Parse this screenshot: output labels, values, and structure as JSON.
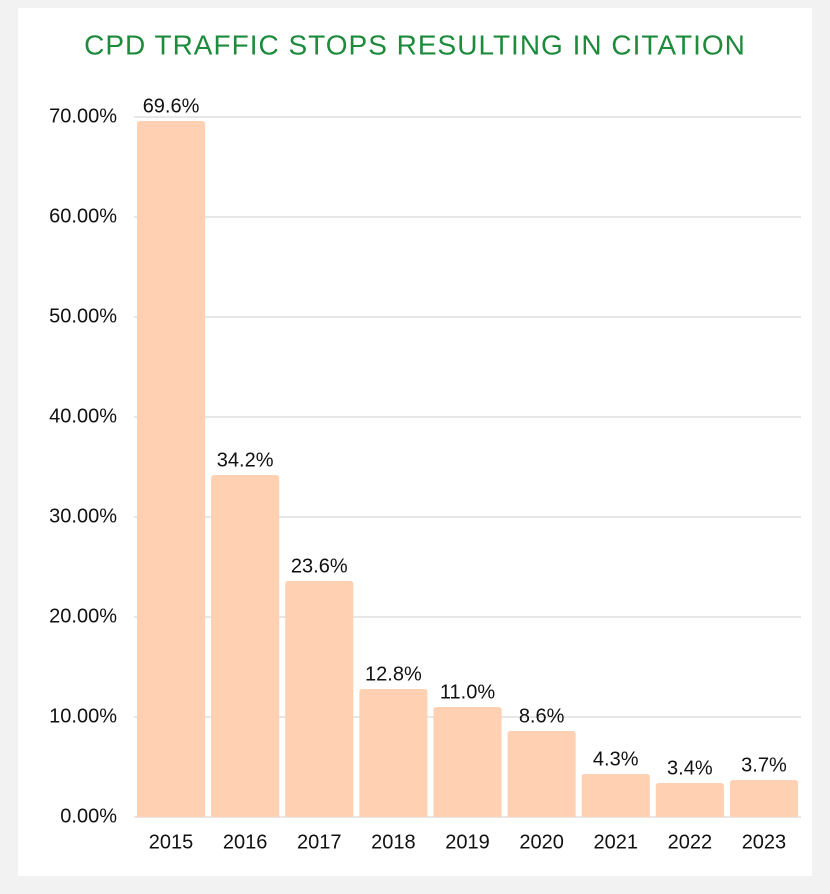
{
  "chart_data": {
    "type": "bar",
    "title": "CPD TRAFFIC STOPS RESULTING IN CITATION",
    "categories": [
      "2015",
      "2016",
      "2017",
      "2018",
      "2019",
      "2020",
      "2021",
      "2022",
      "2023"
    ],
    "values": [
      69.6,
      34.2,
      23.6,
      12.8,
      11.0,
      8.6,
      4.3,
      3.4,
      3.7
    ],
    "value_labels": [
      "69.6%",
      "34.2%",
      "23.6%",
      "12.8%",
      "11.0%",
      "8.6%",
      "4.3%",
      "3.4%",
      "3.7%"
    ],
    "color": "#ffd0b2",
    "ylim": [
      0,
      70
    ],
    "yticks": [
      {
        "value": 0,
        "label": "0.00%"
      },
      {
        "value": 10,
        "label": "10.00%"
      },
      {
        "value": 20,
        "label": "20.00%"
      },
      {
        "value": 30,
        "label": "30.00%"
      },
      {
        "value": 40,
        "label": "40.00%"
      },
      {
        "value": 50,
        "label": "50.00%"
      },
      {
        "value": 60,
        "label": "60.00%"
      },
      {
        "value": 70,
        "label": "70.00%"
      }
    ],
    "grid": true
  }
}
